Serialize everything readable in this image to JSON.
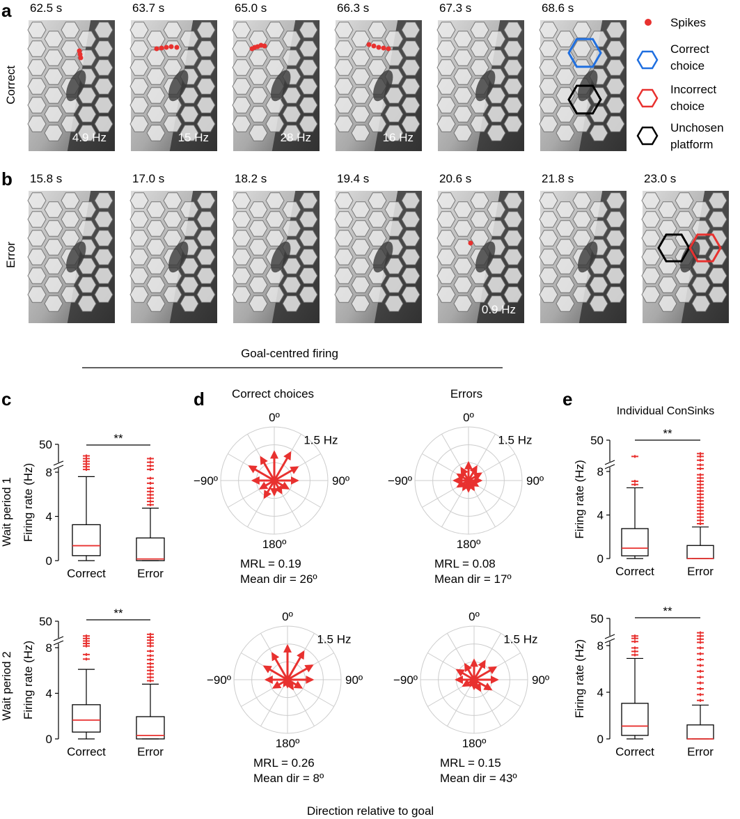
{
  "panel_labels": {
    "a": "a",
    "b": "b",
    "c": "c",
    "d": "d",
    "e": "e"
  },
  "row_a": {
    "label": "Correct",
    "times": [
      "62.5 s",
      "63.7 s",
      "65.0 s",
      "66.3 s",
      "67.3 s",
      "68.6 s"
    ],
    "rates": [
      "4.9 Hz",
      "15 Hz",
      "28 Hz",
      "16 Hz",
      "",
      ""
    ]
  },
  "row_b": {
    "label": "Error",
    "times": [
      "15.8 s",
      "17.0 s",
      "18.2 s",
      "19.4 s",
      "20.6 s",
      "21.8 s",
      "23.0 s"
    ],
    "rates": [
      "",
      "",
      "",
      "",
      "0.9 Hz",
      "",
      ""
    ]
  },
  "legend": {
    "spikes": "Spikes",
    "correct_1": "Correct",
    "correct_2": "choice",
    "incorrect_1": "Incorrect",
    "incorrect_2": "choice",
    "unchosen_1": "Unchosen",
    "unchosen_2": "platform"
  },
  "goal_title": "Goal-centred firing",
  "bottom_label": "Direction relative to goal",
  "colors": {
    "red": "#e8312f",
    "blue": "#1f6fe0",
    "grid": "#cccccc"
  },
  "panel_c": {
    "row_labels": [
      "Wait period 1",
      "Wait period 2"
    ],
    "ylabel": "Firing rate (Hz)",
    "categories": [
      "Correct",
      "Error"
    ],
    "sig": "**",
    "yticks": [
      "0",
      "4",
      "8",
      "50"
    ]
  },
  "panel_d": {
    "headers": [
      "Correct choices",
      "Errors"
    ],
    "angle_labels": {
      "top": "0º",
      "left": "−90º",
      "right": "90º",
      "bottom": "180º"
    },
    "scale": "1.5 Hz",
    "stats": [
      {
        "mrl": "MRL = 0.19",
        "dir": "Mean dir = 26º"
      },
      {
        "mrl": "MRL = 0.08",
        "dir": "Mean dir = 17º"
      },
      {
        "mrl": "MRL = 0.26",
        "dir": "Mean dir = 8º"
      },
      {
        "mrl": "MRL = 0.15",
        "dir": "Mean dir = 43º"
      }
    ]
  },
  "panel_e": {
    "title": "Individual ConSinks",
    "ylabel": "Firing rate (Hz)",
    "categories": [
      "Correct",
      "Error"
    ],
    "sig": "**",
    "yticks": [
      "0",
      "4",
      "8",
      "50"
    ]
  },
  "chart_data": [
    {
      "type": "box",
      "title": "Wait period 1",
      "ylabel": "Firing rate (Hz)",
      "categories": [
        "Correct",
        "Error"
      ],
      "ylim": [
        0,
        50
      ],
      "axis_break": [
        8,
        50
      ],
      "series": [
        {
          "name": "Correct",
          "q1": 0.45,
          "median": 1.35,
          "q3": 3.25,
          "whisker_low": 0.0,
          "whisker_high": 7.6,
          "outliers": [
            8.3,
            8.6,
            8.9,
            9.2,
            9.5,
            9.8
          ]
        },
        {
          "name": "Error",
          "q1": 0.0,
          "median": 0.15,
          "q3": 2.05,
          "whisker_low": 0.0,
          "whisker_high": 4.75,
          "outliers": [
            5.05,
            5.35,
            5.65,
            5.95,
            6.25,
            6.55,
            7.0,
            7.45,
            8.3,
            8.7,
            9.1,
            9.5
          ]
        }
      ]
    },
    {
      "type": "box",
      "title": "Wait period 2",
      "ylabel": "Firing rate (Hz)",
      "categories": [
        "Correct",
        "Error"
      ],
      "ylim": [
        0,
        50
      ],
      "axis_break": [
        8,
        50
      ],
      "series": [
        {
          "name": "Correct",
          "q1": 0.6,
          "median": 1.65,
          "q3": 3.0,
          "whisker_low": 0.0,
          "whisker_high": 6.1,
          "outliers": [
            7.0,
            7.4,
            8.2,
            8.5,
            8.8,
            9.1,
            9.4
          ]
        },
        {
          "name": "Error",
          "q1": 0.0,
          "median": 0.3,
          "q3": 1.95,
          "whisker_low": 0.0,
          "whisker_high": 4.8,
          "outliers": [
            5.1,
            5.4,
            5.7,
            6.0,
            6.3,
            6.6,
            6.95,
            7.3,
            7.7,
            8.2,
            8.55,
            8.9,
            9.25,
            9.6
          ]
        }
      ]
    },
    {
      "type": "polar_arrows",
      "title": "Correct choices (wait period 1)",
      "rmax_hz": 1.5,
      "mrl": 0.19,
      "mean_dir_deg": 26,
      "angles_deg": [
        -150,
        -120,
        -90,
        -60,
        -30,
        0,
        30,
        60,
        90,
        120,
        150,
        180
      ],
      "lengths_hz": [
        0.55,
        0.45,
        0.6,
        0.8,
        0.75,
        0.8,
        0.9,
        0.75,
        0.65,
        0.45,
        0.4,
        0.4
      ]
    },
    {
      "type": "polar_arrows",
      "title": "Errors (wait period 1)",
      "rmax_hz": 1.5,
      "mrl": 0.08,
      "mean_dir_deg": 17,
      "angles_deg": [
        -150,
        -120,
        -90,
        -60,
        -30,
        0,
        30,
        60,
        90,
        120,
        150,
        180
      ],
      "lengths_hz": [
        0.3,
        0.35,
        0.4,
        0.35,
        0.4,
        0.5,
        0.45,
        0.4,
        0.35,
        0.3,
        0.3,
        0.3
      ]
    },
    {
      "type": "polar_arrows",
      "title": "Correct choices (wait period 2)",
      "rmax_hz": 1.5,
      "mrl": 0.26,
      "mean_dir_deg": 8,
      "angles_deg": [
        -150,
        -120,
        -90,
        -60,
        -30,
        0,
        30,
        60,
        90,
        120,
        150,
        180
      ],
      "lengths_hz": [
        0.2,
        0.45,
        0.6,
        0.75,
        0.85,
        0.95,
        0.9,
        0.8,
        0.7,
        0.45,
        0.3,
        0.2
      ]
    },
    {
      "type": "polar_arrows",
      "title": "Errors (wait period 2)",
      "rmax_hz": 1.5,
      "mrl": 0.15,
      "mean_dir_deg": 43,
      "angles_deg": [
        -150,
        -120,
        -90,
        -60,
        -30,
        0,
        30,
        60,
        90,
        120,
        150,
        180
      ],
      "lengths_hz": [
        0.2,
        0.35,
        0.5,
        0.55,
        0.5,
        0.55,
        0.6,
        0.7,
        0.65,
        0.55,
        0.35,
        0.25
      ]
    },
    {
      "type": "box",
      "title": "Individual ConSinks (top)",
      "ylabel": "Firing rate (Hz)",
      "categories": [
        "Correct",
        "Error"
      ],
      "ylim": [
        0,
        50
      ],
      "axis_break": [
        8,
        50
      ],
      "series": [
        {
          "name": "Correct",
          "q1": 0.25,
          "median": 0.95,
          "q3": 2.75,
          "whisker_low": 0.0,
          "whisker_high": 6.5,
          "outliers": [
            6.8,
            7.1,
            9.6
          ]
        },
        {
          "name": "Error",
          "q1": 0.0,
          "median": 0.0,
          "q3": 1.2,
          "whisker_low": 0.0,
          "whisker_high": 2.9,
          "outliers": [
            3.2,
            3.5,
            3.8,
            4.1,
            4.4,
            4.7,
            5.0,
            5.3,
            5.6,
            5.9,
            6.2,
            6.5,
            6.8,
            7.1,
            7.4,
            7.7,
            8.3,
            8.7,
            9.2,
            9.6,
            9.9
          ]
        }
      ]
    },
    {
      "type": "box",
      "title": "Individual ConSinks (bottom)",
      "ylabel": "Firing rate (Hz)",
      "categories": [
        "Correct",
        "Error"
      ],
      "ylim": [
        0,
        50
      ],
      "axis_break": [
        8,
        50
      ],
      "series": [
        {
          "name": "Correct",
          "q1": 0.3,
          "median": 1.1,
          "q3": 3.05,
          "whisker_low": 0.0,
          "whisker_high": 6.9,
          "outliers": [
            7.2,
            7.5,
            7.8,
            8.5,
            8.9,
            9.2
          ]
        },
        {
          "name": "Error",
          "q1": 0.0,
          "median": 0.0,
          "q3": 1.2,
          "whisker_low": 0.0,
          "whisker_high": 2.9,
          "outliers": [
            3.3,
            3.8,
            4.3,
            4.8,
            5.3,
            5.8,
            6.3,
            6.8,
            7.3,
            7.8,
            8.4,
            8.8,
            9.2,
            9.6
          ]
        }
      ]
    }
  ]
}
